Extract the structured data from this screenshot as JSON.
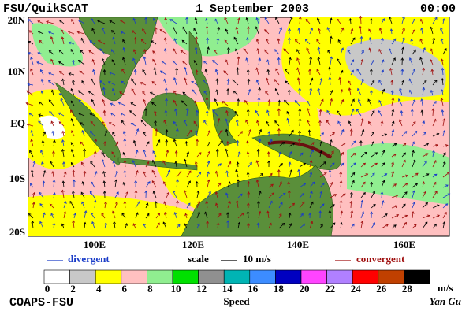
{
  "header": {
    "title": "FSU/QuikSCAT",
    "date": "1 September 2003",
    "time": "00:00"
  },
  "map": {
    "lat_labels": [
      "20N",
      "10N",
      "EQ",
      "10S",
      "20S"
    ],
    "lon_labels": [
      "100E",
      "120E",
      "140E",
      "160E"
    ]
  },
  "legend": {
    "divergent": "divergent",
    "scale": "scale",
    "scale_value": "10 m/s",
    "convergent": "convergent",
    "divergent_color": "#1a3cc8",
    "convergent_color": "#a01010"
  },
  "colorbar": {
    "ticks": [
      0,
      2,
      4,
      6,
      8,
      10,
      12,
      14,
      16,
      18,
      20,
      22,
      24,
      26,
      28
    ],
    "unit": "m/s",
    "label": "Speed",
    "colors": [
      "#ffffff",
      "#c8c8c8",
      "#ffff00",
      "#ffc0c0",
      "#90ee90",
      "#00e000",
      "#909090",
      "#00b4b4",
      "#3c8cff",
      "#0000c0",
      "#ff44ff",
      "#b080ff",
      "#ff0000",
      "#c04000",
      "#000000"
    ]
  },
  "footer": {
    "left": "COAPS-FSU",
    "right": "Yan Gu"
  }
}
